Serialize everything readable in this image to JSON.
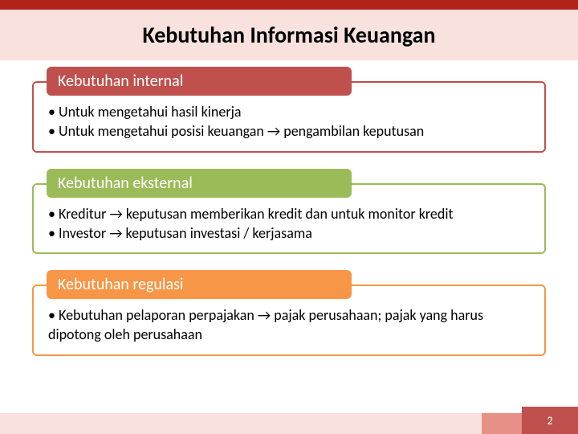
{
  "colors": {
    "top_bar": "#b02318",
    "title_band": "#f9e2de",
    "footer_left": "#f9e2de",
    "footer_mid": "#e79087",
    "footer_right": "#c0504d",
    "section1_header_bg": "#c0504d",
    "section1_border": "#c0504d",
    "section2_header_bg": "#9bbb59",
    "section2_border": "#9bbb59",
    "section3_header_bg": "#f79646",
    "section3_border": "#f79646"
  },
  "title": "Kebutuhan Informasi Keuangan",
  "sections": [
    {
      "header": "Kebutuhan internal",
      "bullets": [
        "Untuk mengetahui hasil kinerja",
        "Untuk mengetahui posisi keuangan → pengambilan keputusan"
      ]
    },
    {
      "header": "Kebutuhan eksternal",
      "bullets": [
        "Kreditur → keputusan memberikan kredit dan untuk monitor kredit",
        "Investor → keputusan investasi / kerjasama"
      ]
    },
    {
      "header": "Kebutuhan regulasi",
      "bullets": [
        "Kebutuhan pelaporan perpajakan → pajak perusahaan; pajak yang harus dipotong oleh perusahaan"
      ]
    }
  ],
  "page_number": "2"
}
